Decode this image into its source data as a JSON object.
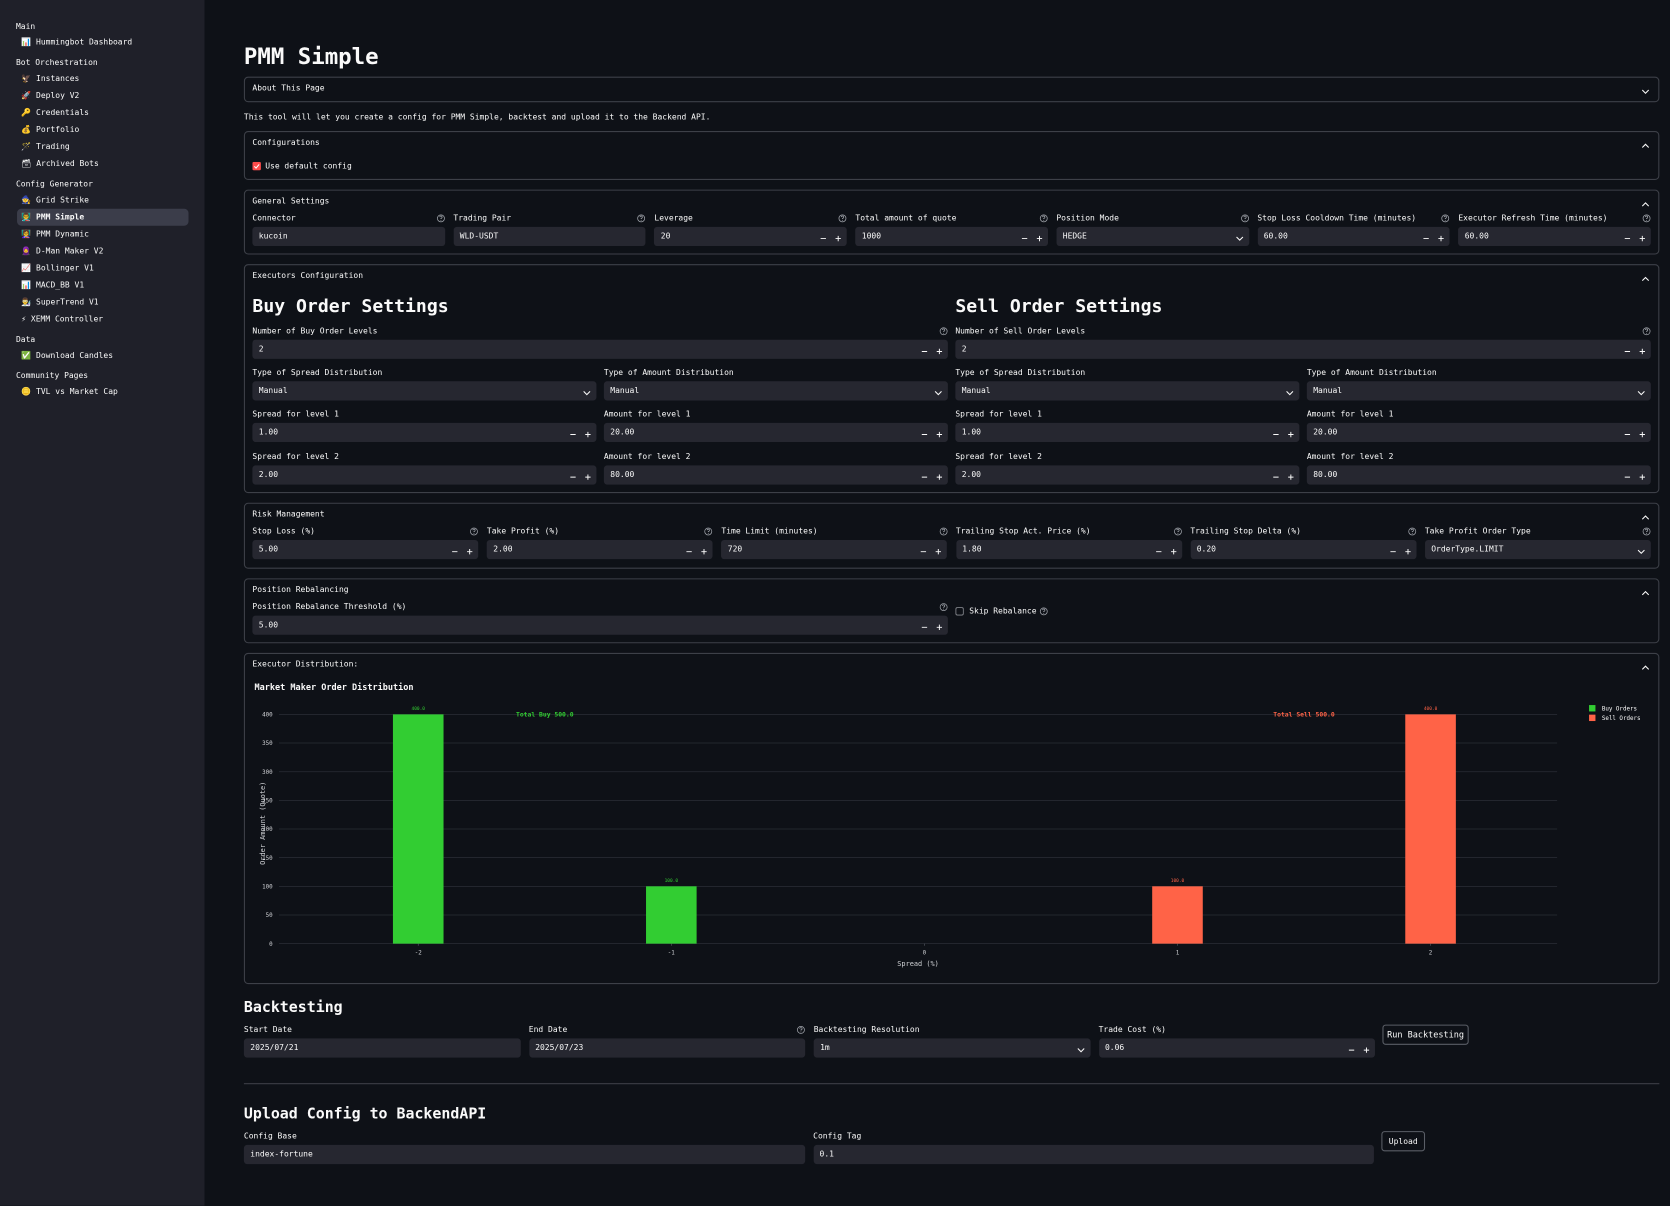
{
  "sidebar": {
    "sections": [
      {
        "title": "Main",
        "items": [
          {
            "label": "📊 Hummingbot Dashboard"
          }
        ]
      },
      {
        "title": "Bot Orchestration",
        "items": [
          {
            "label": "🦅 Instances"
          },
          {
            "label": "🚀 Deploy V2"
          },
          {
            "label": "🔑 Credentials"
          },
          {
            "label": "💰 Portfolio"
          },
          {
            "label": "🪄 Trading"
          },
          {
            "label": "🗃 Archived Bots"
          }
        ]
      },
      {
        "title": "Config Generator",
        "items": [
          {
            "label": "🧙 Grid Strike"
          },
          {
            "label": "👨‍🏫 PMM Simple",
            "active": true
          },
          {
            "label": "👩‍🏫 PMM Dynamic"
          },
          {
            "label": "🧕 D-Man Maker V2"
          },
          {
            "label": "📈 Bollinger V1"
          },
          {
            "label": "📊 MACD_BB V1"
          },
          {
            "label": "👨‍🔬 SuperTrend V1"
          },
          {
            "label": "⚡ XEMM Controller"
          }
        ]
      },
      {
        "title": "Data",
        "items": [
          {
            "label": "✅ Download Candles"
          }
        ]
      },
      {
        "title": "Community Pages",
        "items": [
          {
            "label": "🪙 TVL vs Market Cap"
          }
        ]
      }
    ]
  },
  "page": {
    "title": "PMM Simple",
    "about": {
      "title": "About This Page",
      "expanded": false
    },
    "intro": "This tool will let you create a config for PMM Simple, backtest and upload it to the Backend API."
  },
  "configurations": {
    "title": "Configurations",
    "expanded": true,
    "use_default": {
      "label": "Use default config",
      "checked": true
    }
  },
  "general_settings": {
    "title": "General Settings",
    "expanded": true,
    "fields": [
      {
        "label": "Connector",
        "value": "kucoin",
        "kind": "text",
        "help": true
      },
      {
        "label": "Trading Pair",
        "value": "WLD-USDT",
        "kind": "text",
        "help": true
      },
      {
        "label": "Leverage",
        "value": "20",
        "kind": "number",
        "help": true
      },
      {
        "label": "Total amount of quote",
        "value": "1000",
        "kind": "number",
        "help": true
      },
      {
        "label": "Position Mode",
        "value": "HEDGE",
        "kind": "select",
        "help": true
      },
      {
        "label": "Stop Loss Cooldown Time (minutes)",
        "value": "60.00",
        "kind": "number",
        "help": true
      },
      {
        "label": "Executor Refresh Time (minutes)",
        "value": "60.00",
        "kind": "number",
        "help": true
      }
    ]
  },
  "executors": {
    "title": "Executors Configuration",
    "expanded": true,
    "columns": [
      {
        "heading": "Buy Order Settings",
        "rows": [
          [
            {
              "label": "Number of Buy Order Levels",
              "value": "2",
              "kind": "number",
              "help": true
            }
          ],
          [
            {
              "label": "Type of Spread Distribution",
              "value": "Manual",
              "kind": "select"
            },
            {
              "label": "Type of Amount Distribution",
              "value": "Manual",
              "kind": "select"
            }
          ],
          [
            {
              "label": "Spread for level 1",
              "value": "1.00",
              "kind": "number"
            },
            {
              "label": "Amount for level 1",
              "value": "20.00",
              "kind": "number"
            }
          ],
          [
            {
              "label": "Spread for level 2",
              "value": "2.00",
              "kind": "number"
            },
            {
              "label": "Amount for level 2",
              "value": "80.00",
              "kind": "number"
            }
          ]
        ]
      },
      {
        "heading": "Sell Order Settings",
        "rows": [
          [
            {
              "label": "Number of Sell Order Levels",
              "value": "2",
              "kind": "number",
              "help": true
            }
          ],
          [
            {
              "label": "Type of Spread Distribution",
              "value": "Manual",
              "kind": "select"
            },
            {
              "label": "Type of Amount Distribution",
              "value": "Manual",
              "kind": "select"
            }
          ],
          [
            {
              "label": "Spread for level 1",
              "value": "1.00",
              "kind": "number"
            },
            {
              "label": "Amount for level 1",
              "value": "20.00",
              "kind": "number"
            }
          ],
          [
            {
              "label": "Spread for level 2",
              "value": "2.00",
              "kind": "number"
            },
            {
              "label": "Amount for level 2",
              "value": "80.00",
              "kind": "number"
            }
          ]
        ]
      }
    ]
  },
  "risk_management": {
    "title": "Risk Management",
    "expanded": true,
    "fields": [
      {
        "label": "Stop Loss (%)",
        "value": "5.00",
        "kind": "number",
        "help": true
      },
      {
        "label": "Take Profit (%)",
        "value": "2.00",
        "kind": "number",
        "help": true
      },
      {
        "label": "Time Limit (minutes)",
        "value": "720",
        "kind": "number",
        "help": true
      },
      {
        "label": "Trailing Stop Act. Price (%)",
        "value": "1.80",
        "kind": "number",
        "help": true
      },
      {
        "label": "Trailing Stop Delta (%)",
        "value": "0.20",
        "kind": "number",
        "help": true
      },
      {
        "label": "Take Profit Order Type",
        "value": "OrderType.LIMIT",
        "kind": "select",
        "help": true
      }
    ]
  },
  "position_rebalancing": {
    "title": "Position Rebalancing",
    "expanded": true,
    "fields": [
      {
        "label": "Position Rebalance Threshold (%)",
        "value": "5.00",
        "kind": "number",
        "help": true
      }
    ],
    "skip": {
      "label": "Skip Rebalance",
      "checked": false,
      "help": true
    }
  },
  "executor_distribution": {
    "title": "Executor Distribution:",
    "expanded": true
  },
  "chart_data": {
    "type": "bar",
    "title": "Market Maker Order Distribution",
    "x_label": "Spread (%)",
    "y_label": "Order Amount (Quote)",
    "xlim": [
      -2.55,
      2.5
    ],
    "xticks": [
      -2,
      -1,
      0,
      1,
      2
    ],
    "ylim": [
      0,
      420
    ],
    "yticks": [
      0,
      50,
      100,
      150,
      200,
      250,
      300,
      350,
      400
    ],
    "grid": true,
    "legend": "top-right",
    "series": [
      {
        "name": "Buy Orders",
        "color": "#32cd32",
        "x": [
          -2,
          -1
        ],
        "values": [
          400,
          100
        ],
        "value_labels": [
          "400.0",
          "100.0"
        ],
        "total_label": "Total Buy 500.0"
      },
      {
        "name": "Sell Orders",
        "color": "#ff6347",
        "x": [
          1,
          2
        ],
        "values": [
          100,
          400
        ],
        "value_labels": [
          "100.0",
          "400.0"
        ],
        "total_label": "Total Sell 500.0"
      }
    ]
  },
  "backtesting": {
    "title": "Backtesting",
    "fields": [
      {
        "label": "Start Date",
        "value": "2025/07/21",
        "kind": "text"
      },
      {
        "label": "End Date",
        "value": "2025/07/23",
        "kind": "text",
        "help": true
      },
      {
        "label": "Backtesting Resolution",
        "value": "1m",
        "kind": "select"
      },
      {
        "label": "Trade Cost (%)",
        "value": "0.06",
        "kind": "number"
      }
    ],
    "button": "Run Backtesting"
  },
  "upload": {
    "title": "Upload Config to BackendAPI",
    "fields": [
      {
        "label": "Config Base",
        "value": "index-fortune",
        "kind": "text"
      },
      {
        "label": "Config Tag",
        "value": "0.1",
        "kind": "text"
      }
    ],
    "button": "Upload"
  }
}
